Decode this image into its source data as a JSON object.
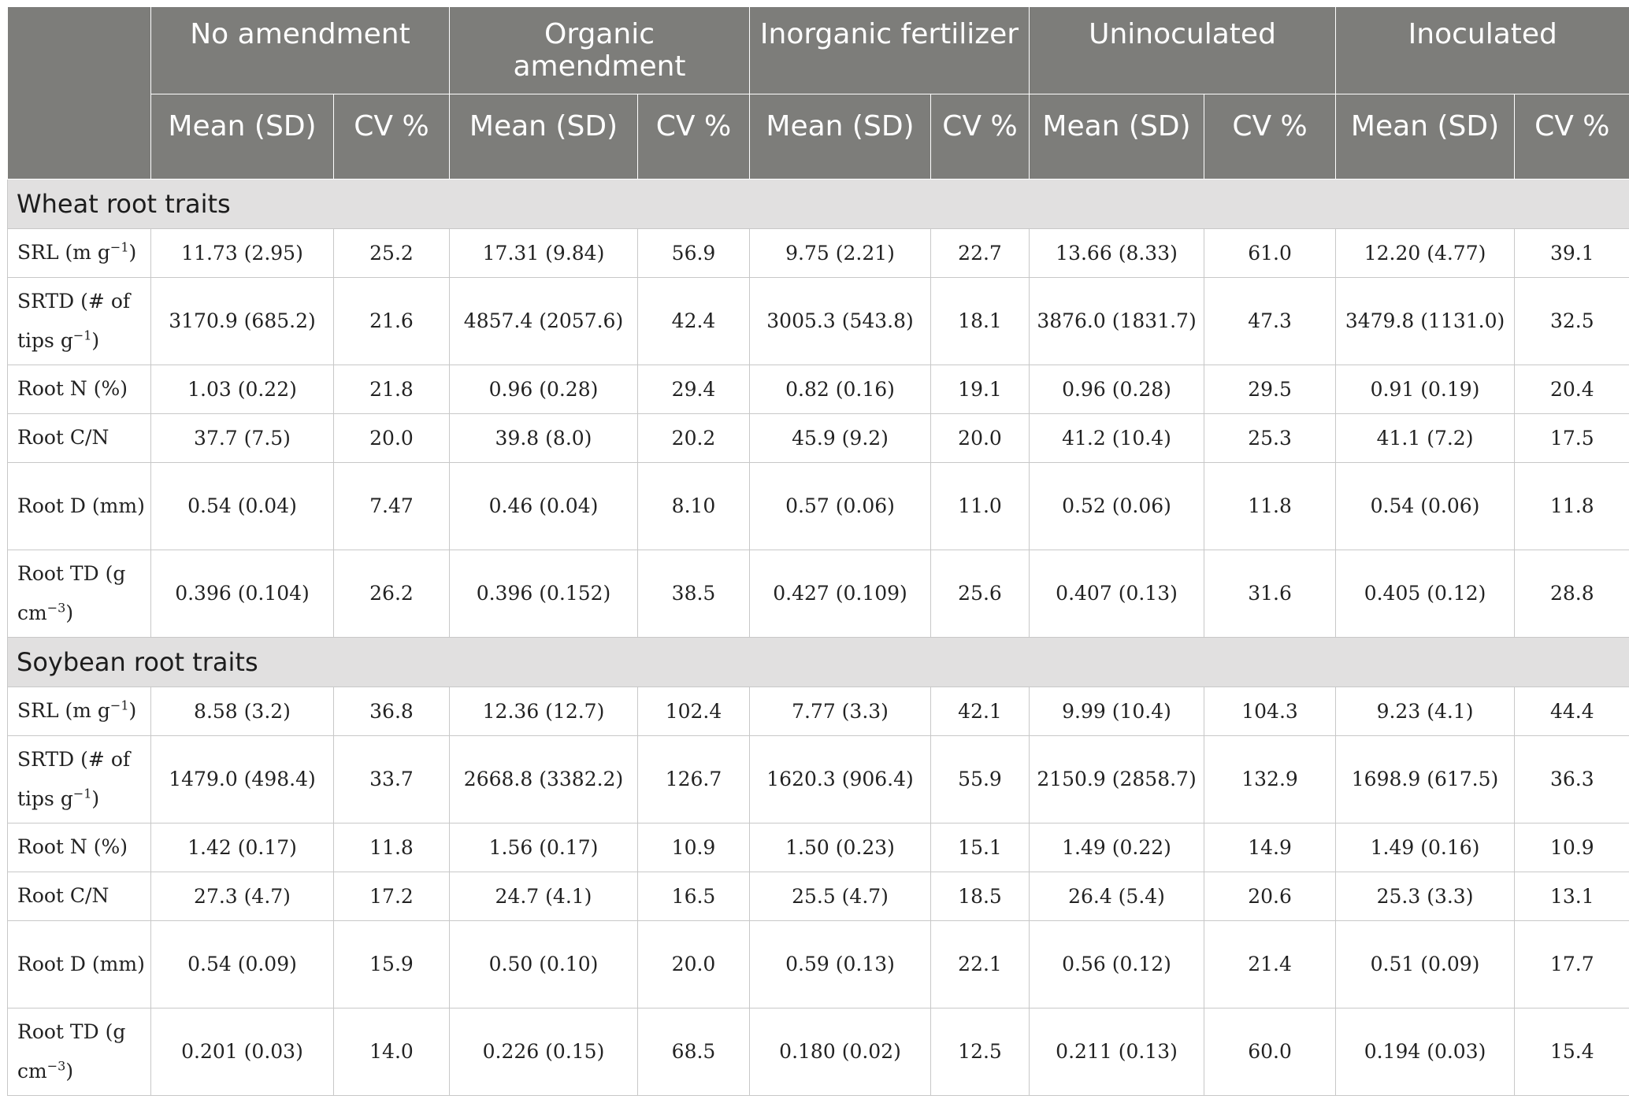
{
  "header": {
    "groups": [
      "No amendment",
      "Organic amendment",
      "Inorganic fertilizer",
      "Uninoculated",
      "Inoculated"
    ],
    "mean_label": "Mean (SD)",
    "cv_label": "CV %"
  },
  "sections": [
    {
      "title": "Wheat root traits",
      "rows": [
        {
          "pre": "SRL (m g",
          "sup": "−1",
          "post": ")",
          "cells": [
            "11.73 (2.95)",
            "25.2",
            "17.31 (9.84)",
            "56.9",
            "9.75 (2.21)",
            "22.7",
            "13.66 (8.33)",
            "61.0",
            "12.20 (4.77)",
            "39.1"
          ]
        },
        {
          "pre": "SRTD (# of tips g",
          "sup": "−1",
          "post": ")",
          "cells": [
            "3170.9 (685.2)",
            "21.6",
            "4857.4 (2057.6)",
            "42.4",
            "3005.3 (543.8)",
            "18.1",
            "3876.0 (1831.7)",
            "47.3",
            "3479.8 (1131.0)",
            "32.5"
          ]
        },
        {
          "pre": "Root N (%)",
          "sup": "",
          "post": "",
          "cells": [
            "1.03 (0.22)",
            "21.8",
            "0.96 (0.28)",
            "29.4",
            "0.82 (0.16)",
            "19.1",
            "0.96 (0.28)",
            "29.5",
            "0.91 (0.19)",
            "20.4"
          ]
        },
        {
          "pre": "Root C/N",
          "sup": "",
          "post": "",
          "cells": [
            "37.7 (7.5)",
            "20.0",
            "39.8 (8.0)",
            "20.2",
            "45.9 (9.2)",
            "20.0",
            "41.2 (10.4)",
            "25.3",
            "41.1 (7.2)",
            "17.5"
          ]
        },
        {
          "pre": "Root D (mm)",
          "sup": "",
          "post": "",
          "cells": [
            "0.54 (0.04)",
            "7.47",
            "0.46 (0.04)",
            "8.10",
            "0.57 (0.06)",
            "11.0",
            "0.52 (0.06)",
            "11.8",
            "0.54 (0.06)",
            "11.8"
          ]
        },
        {
          "pre": "Root TD (g cm",
          "sup": "−3",
          "post": ")",
          "cells": [
            "0.396 (0.104)",
            "26.2",
            "0.396 (0.152)",
            "38.5",
            "0.427 (0.109)",
            "25.6",
            "0.407 (0.13)",
            "31.6",
            "0.405 (0.12)",
            "28.8"
          ]
        }
      ]
    },
    {
      "title": "Soybean root traits",
      "rows": [
        {
          "pre": "SRL (m g",
          "sup": "−1",
          "post": ")",
          "cells": [
            "8.58 (3.2)",
            "36.8",
            "12.36 (12.7)",
            "102.4",
            "7.77 (3.3)",
            "42.1",
            "9.99 (10.4)",
            "104.3",
            "9.23 (4.1)",
            "44.4"
          ]
        },
        {
          "pre": "SRTD (# of tips g",
          "sup": "−1",
          "post": ")",
          "cells": [
            "1479.0 (498.4)",
            "33.7",
            "2668.8 (3382.2)",
            "126.7",
            "1620.3 (906.4)",
            "55.9",
            "2150.9 (2858.7)",
            "132.9",
            "1698.9 (617.5)",
            "36.3"
          ]
        },
        {
          "pre": "Root N (%)",
          "sup": "",
          "post": "",
          "cells": [
            "1.42 (0.17)",
            "11.8",
            "1.56 (0.17)",
            "10.9",
            "1.50 (0.23)",
            "15.1",
            "1.49 (0.22)",
            "14.9",
            "1.49 (0.16)",
            "10.9"
          ]
        },
        {
          "pre": "Root C/N",
          "sup": "",
          "post": "",
          "cells": [
            "27.3 (4.7)",
            "17.2",
            "24.7 (4.1)",
            "16.5",
            "25.5 (4.7)",
            "18.5",
            "26.4 (5.4)",
            "20.6",
            "25.3 (3.3)",
            "13.1"
          ]
        },
        {
          "pre": "Root D (mm)",
          "sup": "",
          "post": "",
          "cells": [
            "0.54 (0.09)",
            "15.9",
            "0.50 (0.10)",
            "20.0",
            "0.59 (0.13)",
            "22.1",
            "0.56 (0.12)",
            "21.4",
            "0.51 (0.09)",
            "17.7"
          ]
        },
        {
          "pre": "Root TD (g cm",
          "sup": "−3",
          "post": ")",
          "cells": [
            "0.201 (0.03)",
            "14.0",
            "0.226 (0.15)",
            "68.5",
            "0.180 (0.02)",
            "12.5",
            "0.211 (0.13)",
            "60.0",
            "0.194 (0.03)",
            "15.4"
          ]
        }
      ]
    }
  ]
}
